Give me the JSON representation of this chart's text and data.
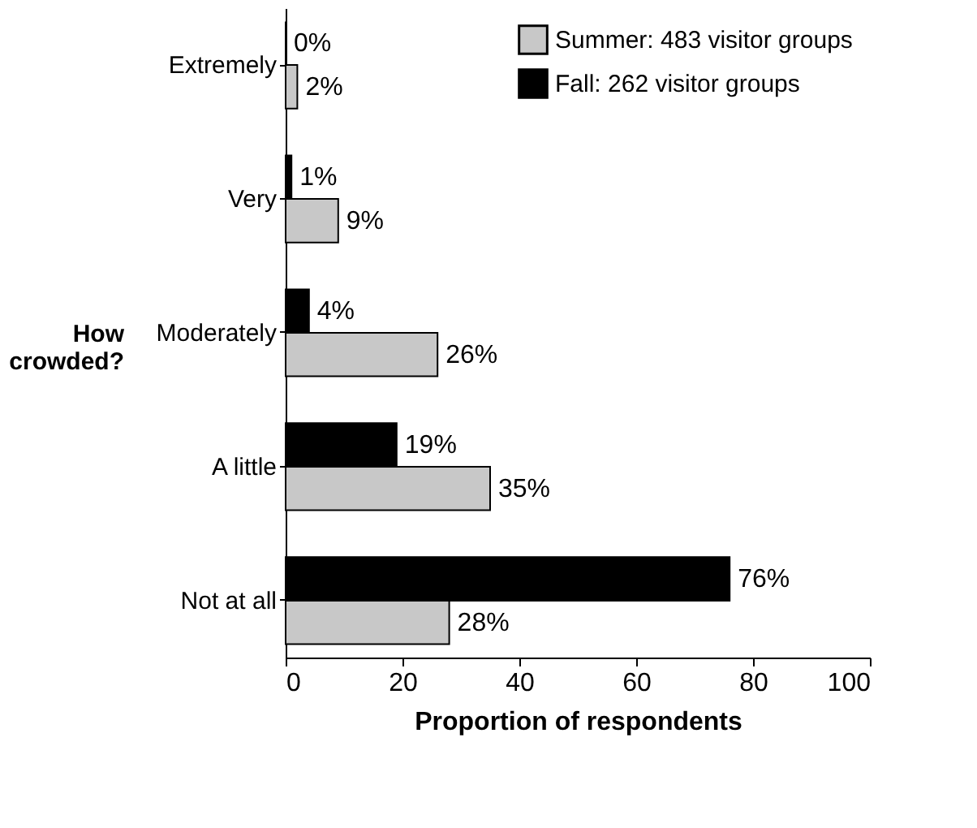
{
  "chart_data": {
    "type": "bar",
    "orientation": "horizontal",
    "categories": [
      "Extremely",
      "Very",
      "Moderately",
      "A little",
      "Not at all"
    ],
    "series": [
      {
        "name": "Fall: 262 visitor groups",
        "color": "#000000",
        "values": [
          0,
          1,
          4,
          19,
          76
        ],
        "value_labels": [
          "0%",
          "1%",
          "4%",
          "19%",
          "76%"
        ]
      },
      {
        "name": "Summer: 483 visitor groups",
        "color": "#c8c8c8",
        "values": [
          2,
          9,
          26,
          35,
          28
        ],
        "value_labels": [
          "2%",
          "9%",
          "26%",
          "35%",
          "28%"
        ]
      }
    ],
    "xlabel": "Proportion of respondents",
    "ylabel": "How crowded?",
    "xlim": [
      0,
      100
    ],
    "xticks": [
      0,
      20,
      40,
      60,
      80,
      100
    ],
    "grid": false,
    "legend": "top right"
  }
}
